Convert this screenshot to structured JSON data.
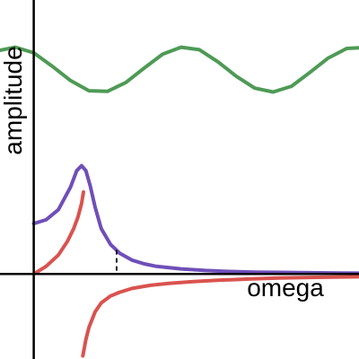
{
  "chart_data": {
    "type": "line",
    "title": "",
    "xlabel": "omega",
    "ylabel": "amplitude",
    "grid": false,
    "legend": "none",
    "xlim": [
      -0.55,
      5.3
    ],
    "ylim": [
      -1.35,
      4.35
    ],
    "annotations": [
      {
        "type": "vertical-dashed-line",
        "x": 1.35,
        "y_top": 0.38
      }
    ],
    "series": [
      {
        "color": "#4e9a55",
        "x": [
          -0.55,
          -0.3,
          0.0,
          0.3,
          0.6,
          0.9,
          1.2,
          1.5,
          1.8,
          2.1,
          2.4,
          2.7,
          3.0,
          3.3,
          3.6,
          3.9,
          4.2,
          4.5,
          4.8,
          5.1,
          5.3
        ],
        "y": [
          3.55,
          3.6,
          3.51,
          3.3,
          3.07,
          2.91,
          2.9,
          3.04,
          3.27,
          3.49,
          3.6,
          3.56,
          3.37,
          3.14,
          2.95,
          2.89,
          2.98,
          3.2,
          3.43,
          3.58,
          3.59
        ]
      },
      {
        "color": "#6f4fb8",
        "x": [
          0.0,
          0.2,
          0.4,
          0.6,
          0.7,
          0.78,
          0.85,
          0.92,
          1.0,
          1.1,
          1.25,
          1.4,
          1.6,
          1.8,
          2.0,
          2.4,
          2.8,
          3.2,
          3.6,
          4.0,
          4.5,
          5.0,
          5.3
        ],
        "y": [
          0.8,
          0.86,
          1.02,
          1.38,
          1.64,
          1.72,
          1.64,
          1.4,
          1.06,
          0.72,
          0.47,
          0.33,
          0.22,
          0.16,
          0.12,
          0.08,
          0.055,
          0.04,
          0.03,
          0.025,
          0.02,
          0.015,
          0.012
        ]
      },
      {
        "color": "#d9534f",
        "x": [
          0.0,
          0.2,
          0.4,
          0.55,
          0.65,
          0.72,
          0.78,
          0.81
        ],
        "y": [
          0.0,
          0.12,
          0.3,
          0.52,
          0.72,
          0.9,
          1.12,
          1.3
        ]
      },
      {
        "color": "#d9534f",
        "x": [
          0.8,
          0.85,
          0.9,
          1.0,
          1.1,
          1.25,
          1.4,
          1.6,
          1.9,
          2.2,
          2.6,
          3.0,
          3.5,
          4.0,
          4.5,
          5.0,
          5.3
        ],
        "y": [
          -1.3,
          -1.04,
          -0.85,
          -0.6,
          -0.46,
          -0.35,
          -0.29,
          -0.23,
          -0.18,
          -0.15,
          -0.12,
          -0.1,
          -0.08,
          -0.065,
          -0.055,
          -0.048,
          -0.044
        ]
      }
    ]
  }
}
